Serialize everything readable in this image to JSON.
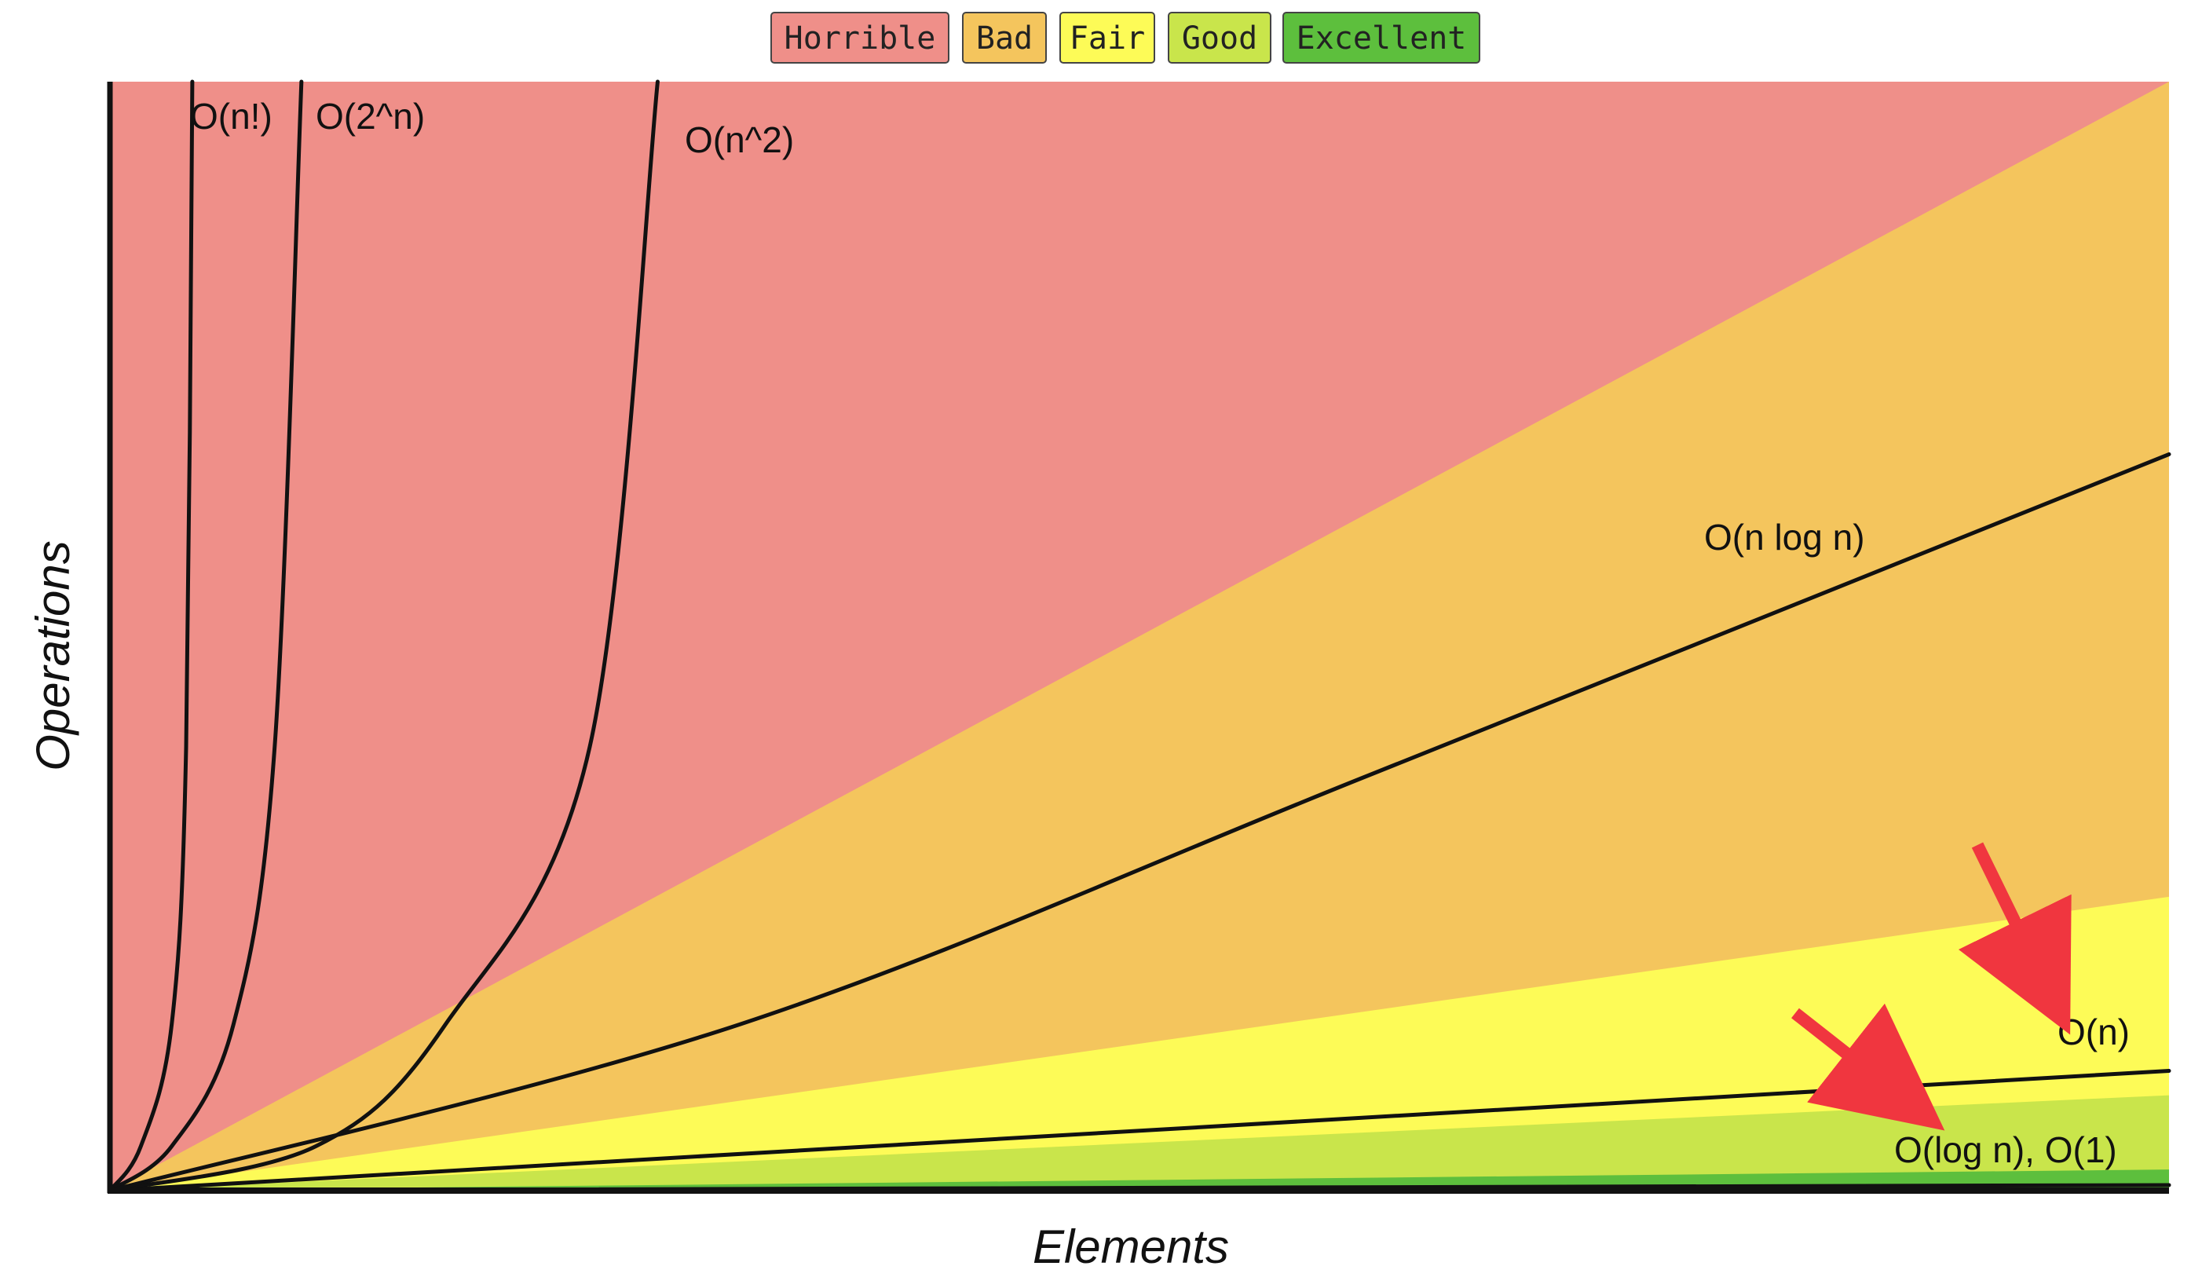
{
  "chart_data": {
    "type": "area",
    "title": "",
    "xlabel": "Elements",
    "ylabel": "Operations",
    "grid": false,
    "legend_position": "top-center",
    "legend": [
      {
        "label": "Horrible",
        "color": "#ef8f89"
      },
      {
        "label": "Bad",
        "color": "#f4c55d"
      },
      {
        "label": "Fair",
        "color": "#fdfb57"
      },
      {
        "label": "Good",
        "color": "#c9e54b"
      },
      {
        "label": "Excellent",
        "color": "#5dbf3d"
      }
    ],
    "xlim": [
      0,
      100
    ],
    "ylim": [
      0,
      100
    ],
    "zone_boundaries": [
      {
        "zone": "Horrible",
        "upper": "top"
      },
      {
        "zone": "Bad",
        "upper_y_at_xmax": 100
      },
      {
        "zone": "Fair",
        "upper_y_at_xmax": 26.5
      },
      {
        "zone": "Good",
        "upper_y_at_xmax": 8.6
      },
      {
        "zone": "Excellent",
        "upper_y_at_xmax": 1.9
      }
    ],
    "curves": [
      {
        "label": "O(n!)",
        "points": [
          [
            0,
            0
          ],
          [
            1.5,
            4
          ],
          [
            3,
            15
          ],
          [
            3.7,
            40
          ],
          [
            4,
            100
          ]
        ]
      },
      {
        "label": "O(2^n)",
        "points": [
          [
            0,
            0
          ],
          [
            3,
            4
          ],
          [
            6,
            15
          ],
          [
            8,
            40
          ],
          [
            9.3,
            100
          ]
        ]
      },
      {
        "label": "O(n^2)",
        "points": [
          [
            0,
            0
          ],
          [
            10,
            4
          ],
          [
            16.3,
            15
          ],
          [
            23.3,
            40
          ],
          [
            26.6,
            100
          ]
        ]
      },
      {
        "label": "O(n log n)",
        "points": [
          [
            0,
            0
          ],
          [
            30.6,
            15
          ],
          [
            61.2,
            37.5
          ],
          [
            100,
            66.4
          ]
        ]
      },
      {
        "label": "O(n)",
        "points": [
          [
            0,
            0
          ],
          [
            100,
            10.8
          ]
        ]
      },
      {
        "label": "O(log n), O(1)",
        "points": [
          [
            0,
            0
          ],
          [
            100,
            0.5
          ]
        ]
      }
    ],
    "annotations": [
      {
        "text": "O(n)",
        "type": "arrow-target"
      },
      {
        "text": "O(log n), O(1)",
        "type": "arrow-target"
      }
    ],
    "arrow_color": "#f0363f"
  }
}
